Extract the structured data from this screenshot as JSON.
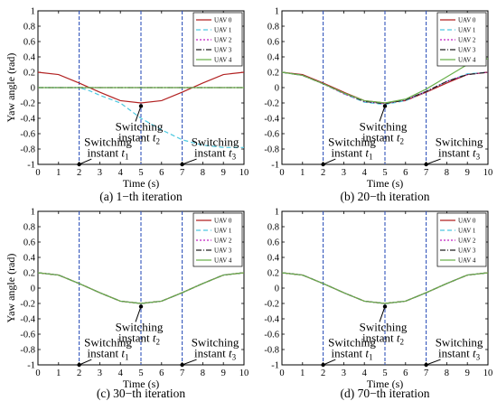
{
  "chart_data": [
    {
      "type": "line",
      "caption": "(a) 1−th iteration",
      "xlabel": "Time (s)",
      "ylabel": "Yaw angle (rad)",
      "xlim": [
        0,
        10
      ],
      "ylim": [
        -1,
        1
      ],
      "xticks": [
        "0",
        "1",
        "2",
        "3",
        "4",
        "5",
        "6",
        "7",
        "8",
        "9",
        "10"
      ],
      "yticks": [
        "1",
        "0.8",
        "0.6",
        "0.4",
        "0.2",
        "0",
        "-0.2",
        "-0.4",
        "-0.6",
        "-0.8",
        "-1"
      ],
      "grid": false,
      "legend_position": "top-right",
      "switching_lines": [
        2,
        5,
        7
      ],
      "annotations": [
        {
          "line1": "Switching",
          "line2": "instant ",
          "sym": "t",
          "sub": "2"
        },
        {
          "line1": "Switching",
          "line2": "instant ",
          "sym": "t",
          "sub": "1"
        },
        {
          "line1": "Switching",
          "line2": "instant ",
          "sym": "t",
          "sub": "3"
        }
      ],
      "series": [
        {
          "name": "UAV 0",
          "color": "#b22222",
          "dash": "",
          "points": [
            [
              0,
              0.2
            ],
            [
              1,
              0.17
            ],
            [
              2,
              0.06
            ],
            [
              3,
              -0.06
            ],
            [
              4,
              -0.17
            ],
            [
              5,
              -0.2
            ],
            [
              6,
              -0.17
            ],
            [
              7,
              -0.06
            ],
            [
              8,
              0.06
            ],
            [
              9,
              0.17
            ],
            [
              10,
              0.2
            ]
          ]
        },
        {
          "name": "UAV 1",
          "color": "#4dc8e0",
          "dash": "5,3",
          "points": [
            [
              0,
              0.0
            ],
            [
              1,
              0.0
            ],
            [
              2,
              0.0
            ],
            [
              2.5,
              -0.04
            ],
            [
              3,
              -0.1
            ],
            [
              4,
              -0.2
            ],
            [
              5,
              -0.4
            ],
            [
              6,
              -0.55
            ],
            [
              7,
              -0.68
            ],
            [
              8,
              -0.75
            ],
            [
              9,
              -0.78
            ],
            [
              10,
              -0.78
            ]
          ]
        },
        {
          "name": "UAV 2",
          "color": "#c020c0",
          "dash": "2,2",
          "points": [
            [
              0,
              0.0
            ],
            [
              10,
              0.0
            ]
          ]
        },
        {
          "name": "UAV 3",
          "color": "#202020",
          "dash": "6,2,1,2",
          "points": [
            [
              0,
              0.0
            ],
            [
              10,
              0.0
            ]
          ]
        },
        {
          "name": "UAV 4",
          "color": "#6ab04c",
          "dash": "",
          "points": [
            [
              0,
              0.0
            ],
            [
              10,
              0.0
            ]
          ]
        }
      ]
    },
    {
      "type": "line",
      "caption": "(b) 20−th iteration",
      "xlabel": "Time (s)",
      "ylabel": "",
      "xlim": [
        0,
        10
      ],
      "ylim": [
        -1,
        1
      ],
      "xticks": [
        "0",
        "1",
        "2",
        "3",
        "4",
        "5",
        "6",
        "7",
        "8",
        "9",
        "10"
      ],
      "yticks": [
        "1",
        "0.8",
        "0.6",
        "0.4",
        "0.2",
        "0",
        "-0.2",
        "-0.4",
        "-0.6",
        "-0.8",
        "-1"
      ],
      "grid": false,
      "legend_position": "top-right",
      "switching_lines": [
        2,
        5,
        7
      ],
      "annotations": [
        {
          "line1": "Switching",
          "line2": "instant ",
          "sym": "t",
          "sub": "2"
        },
        {
          "line1": "Switching",
          "line2": "instant ",
          "sym": "t",
          "sub": "1"
        },
        {
          "line1": "Switching",
          "line2": "instant ",
          "sym": "t",
          "sub": "3"
        }
      ],
      "series": [
        {
          "name": "UAV 0",
          "color": "#b22222",
          "dash": "",
          "points": [
            [
              0,
              0.2
            ],
            [
              1,
              0.17
            ],
            [
              2,
              0.06
            ],
            [
              3,
              -0.06
            ],
            [
              4,
              -0.17
            ],
            [
              5,
              -0.2
            ],
            [
              6,
              -0.17
            ],
            [
              7,
              -0.06
            ],
            [
              8,
              0.06
            ],
            [
              9,
              0.17
            ],
            [
              10,
              0.2
            ]
          ]
        },
        {
          "name": "UAV 1",
          "color": "#4dc8e0",
          "dash": "5,3",
          "points": [
            [
              0,
              0.2
            ],
            [
              1,
              0.16
            ],
            [
              2,
              0.05
            ],
            [
              3,
              -0.08
            ],
            [
              4,
              -0.19
            ],
            [
              5,
              -0.22
            ],
            [
              6,
              -0.17
            ],
            [
              7,
              -0.05
            ],
            [
              8,
              0.08
            ],
            [
              9,
              0.18
            ],
            [
              10,
              0.2
            ]
          ]
        },
        {
          "name": "UAV 2",
          "color": "#c020c0",
          "dash": "2,2",
          "points": [
            [
              0,
              0.2
            ],
            [
              1,
              0.16
            ],
            [
              2,
              0.05
            ],
            [
              3,
              -0.08
            ],
            [
              4,
              -0.18
            ],
            [
              5,
              -0.21
            ],
            [
              6,
              -0.16
            ],
            [
              7,
              -0.05
            ],
            [
              8,
              0.08
            ],
            [
              9,
              0.17
            ],
            [
              10,
              0.2
            ]
          ]
        },
        {
          "name": "UAV 3",
          "color": "#202020",
          "dash": "6,2,1,2",
          "points": [
            [
              0,
              0.2
            ],
            [
              1,
              0.16
            ],
            [
              2,
              0.05
            ],
            [
              3,
              -0.07
            ],
            [
              4,
              -0.18
            ],
            [
              5,
              -0.21
            ],
            [
              6,
              -0.16
            ],
            [
              7,
              -0.05
            ],
            [
              8,
              0.08
            ],
            [
              9,
              0.17
            ],
            [
              10,
              0.2
            ]
          ]
        },
        {
          "name": "UAV 4",
          "color": "#6ab04c",
          "dash": "",
          "points": [
            [
              0,
              0.2
            ],
            [
              1,
              0.16
            ],
            [
              2,
              0.05
            ],
            [
              3,
              -0.07
            ],
            [
              4,
              -0.17
            ],
            [
              5,
              -0.2
            ],
            [
              6,
              -0.15
            ],
            [
              7,
              -0.02
            ],
            [
              8,
              0.14
            ],
            [
              9,
              0.3
            ],
            [
              10,
              0.38
            ]
          ]
        }
      ]
    },
    {
      "type": "line",
      "caption": "(c) 30−th iteration",
      "xlabel": "Time (s)",
      "ylabel": "Yaw angle (rad)",
      "xlim": [
        0,
        10
      ],
      "ylim": [
        -1,
        1
      ],
      "xticks": [
        "0",
        "1",
        "2",
        "3",
        "4",
        "5",
        "6",
        "7",
        "8",
        "9",
        "10"
      ],
      "yticks": [
        "1",
        "0.8",
        "0.6",
        "0.4",
        "0.2",
        "0",
        "-0.2",
        "-0.4",
        "-0.6",
        "-0.8",
        "-1"
      ],
      "grid": false,
      "legend_position": "top-right",
      "switching_lines": [
        2,
        5,
        7
      ],
      "annotations": [
        {
          "line1": "Switching",
          "line2": "instant ",
          "sym": "t",
          "sub": "2"
        },
        {
          "line1": "Switching",
          "line2": "instant ",
          "sym": "t",
          "sub": "1"
        },
        {
          "line1": "Switching",
          "line2": "instant ",
          "sym": "t",
          "sub": "3"
        }
      ],
      "series": [
        {
          "name": "UAV 0",
          "color": "#b22222",
          "dash": "",
          "points": [
            [
              0,
              0.2
            ],
            [
              1,
              0.17
            ],
            [
              2,
              0.06
            ],
            [
              3,
              -0.06
            ],
            [
              4,
              -0.17
            ],
            [
              5,
              -0.2
            ],
            [
              6,
              -0.17
            ],
            [
              7,
              -0.06
            ],
            [
              8,
              0.06
            ],
            [
              9,
              0.17
            ],
            [
              10,
              0.2
            ]
          ]
        },
        {
          "name": "UAV 1",
          "color": "#4dc8e0",
          "dash": "5,3",
          "points": [
            [
              0,
              0.2
            ],
            [
              1,
              0.17
            ],
            [
              2,
              0.06
            ],
            [
              3,
              -0.06
            ],
            [
              4,
              -0.17
            ],
            [
              5,
              -0.2
            ],
            [
              6,
              -0.17
            ],
            [
              7,
              -0.06
            ],
            [
              8,
              0.06
            ],
            [
              9,
              0.17
            ],
            [
              10,
              0.2
            ]
          ]
        },
        {
          "name": "UAV 2",
          "color": "#c020c0",
          "dash": "2,2",
          "points": [
            [
              0,
              0.2
            ],
            [
              1,
              0.17
            ],
            [
              2,
              0.06
            ],
            [
              3,
              -0.06
            ],
            [
              4,
              -0.17
            ],
            [
              5,
              -0.2
            ],
            [
              6,
              -0.17
            ],
            [
              7,
              -0.06
            ],
            [
              8,
              0.06
            ],
            [
              9,
              0.17
            ],
            [
              10,
              0.2
            ]
          ]
        },
        {
          "name": "UAV 3",
          "color": "#202020",
          "dash": "6,2,1,2",
          "points": [
            [
              0,
              0.2
            ],
            [
              1,
              0.17
            ],
            [
              2,
              0.06
            ],
            [
              3,
              -0.06
            ],
            [
              4,
              -0.17
            ],
            [
              5,
              -0.2
            ],
            [
              6,
              -0.17
            ],
            [
              7,
              -0.06
            ],
            [
              8,
              0.06
            ],
            [
              9,
              0.17
            ],
            [
              10,
              0.2
            ]
          ]
        },
        {
          "name": "UAV 4",
          "color": "#6ab04c",
          "dash": "",
          "points": [
            [
              0,
              0.2
            ],
            [
              1,
              0.17
            ],
            [
              2,
              0.06
            ],
            [
              3,
              -0.06
            ],
            [
              4,
              -0.17
            ],
            [
              5,
              -0.2
            ],
            [
              6,
              -0.17
            ],
            [
              7,
              -0.06
            ],
            [
              8,
              0.06
            ],
            [
              9,
              0.17
            ],
            [
              10,
              0.2
            ]
          ]
        }
      ]
    },
    {
      "type": "line",
      "caption": "(d) 70−th iteration",
      "xlabel": "Time (s)",
      "ylabel": "",
      "xlim": [
        0,
        10
      ],
      "ylim": [
        -1,
        1
      ],
      "xticks": [
        "0",
        "1",
        "2",
        "3",
        "4",
        "5",
        "6",
        "7",
        "8",
        "9",
        "10"
      ],
      "yticks": [
        "1",
        "0.8",
        "0.6",
        "0.4",
        "0.2",
        "0",
        "-0.2",
        "-0.4",
        "-0.6",
        "-0.8",
        "-1"
      ],
      "grid": false,
      "legend_position": "top-right",
      "switching_lines": [
        2,
        5,
        7
      ],
      "annotations": [
        {
          "line1": "Switching",
          "line2": "instant ",
          "sym": "t",
          "sub": "2"
        },
        {
          "line1": "Switching",
          "line2": "instant ",
          "sym": "t",
          "sub": "1"
        },
        {
          "line1": "Switching",
          "line2": "instant ",
          "sym": "t",
          "sub": "3"
        }
      ],
      "series": [
        {
          "name": "UAV 0",
          "color": "#b22222",
          "dash": "",
          "points": [
            [
              0,
              0.2
            ],
            [
              1,
              0.17
            ],
            [
              2,
              0.06
            ],
            [
              3,
              -0.06
            ],
            [
              4,
              -0.17
            ],
            [
              5,
              -0.2
            ],
            [
              6,
              -0.17
            ],
            [
              7,
              -0.06
            ],
            [
              8,
              0.06
            ],
            [
              9,
              0.17
            ],
            [
              10,
              0.2
            ]
          ]
        },
        {
          "name": "UAV 1",
          "color": "#4dc8e0",
          "dash": "5,3",
          "points": [
            [
              0,
              0.2
            ],
            [
              1,
              0.17
            ],
            [
              2,
              0.06
            ],
            [
              3,
              -0.06
            ],
            [
              4,
              -0.17
            ],
            [
              5,
              -0.2
            ],
            [
              6,
              -0.17
            ],
            [
              7,
              -0.06
            ],
            [
              8,
              0.06
            ],
            [
              9,
              0.17
            ],
            [
              10,
              0.2
            ]
          ]
        },
        {
          "name": "UAV 2",
          "color": "#c020c0",
          "dash": "2,2",
          "points": [
            [
              0,
              0.2
            ],
            [
              1,
              0.17
            ],
            [
              2,
              0.06
            ],
            [
              3,
              -0.06
            ],
            [
              4,
              -0.17
            ],
            [
              5,
              -0.2
            ],
            [
              6,
              -0.17
            ],
            [
              7,
              -0.06
            ],
            [
              8,
              0.06
            ],
            [
              9,
              0.17
            ],
            [
              10,
              0.2
            ]
          ]
        },
        {
          "name": "UAV 3",
          "color": "#202020",
          "dash": "6,2,1,2",
          "points": [
            [
              0,
              0.2
            ],
            [
              1,
              0.17
            ],
            [
              2,
              0.06
            ],
            [
              3,
              -0.06
            ],
            [
              4,
              -0.17
            ],
            [
              5,
              -0.2
            ],
            [
              6,
              -0.17
            ],
            [
              7,
              -0.06
            ],
            [
              8,
              0.06
            ],
            [
              9,
              0.17
            ],
            [
              10,
              0.2
            ]
          ]
        },
        {
          "name": "UAV 4",
          "color": "#6ab04c",
          "dash": "",
          "points": [
            [
              0,
              0.2
            ],
            [
              1,
              0.17
            ],
            [
              2,
              0.06
            ],
            [
              3,
              -0.06
            ],
            [
              4,
              -0.17
            ],
            [
              5,
              -0.2
            ],
            [
              6,
              -0.17
            ],
            [
              7,
              -0.06
            ],
            [
              8,
              0.06
            ],
            [
              9,
              0.17
            ],
            [
              10,
              0.2
            ]
          ]
        }
      ]
    }
  ]
}
